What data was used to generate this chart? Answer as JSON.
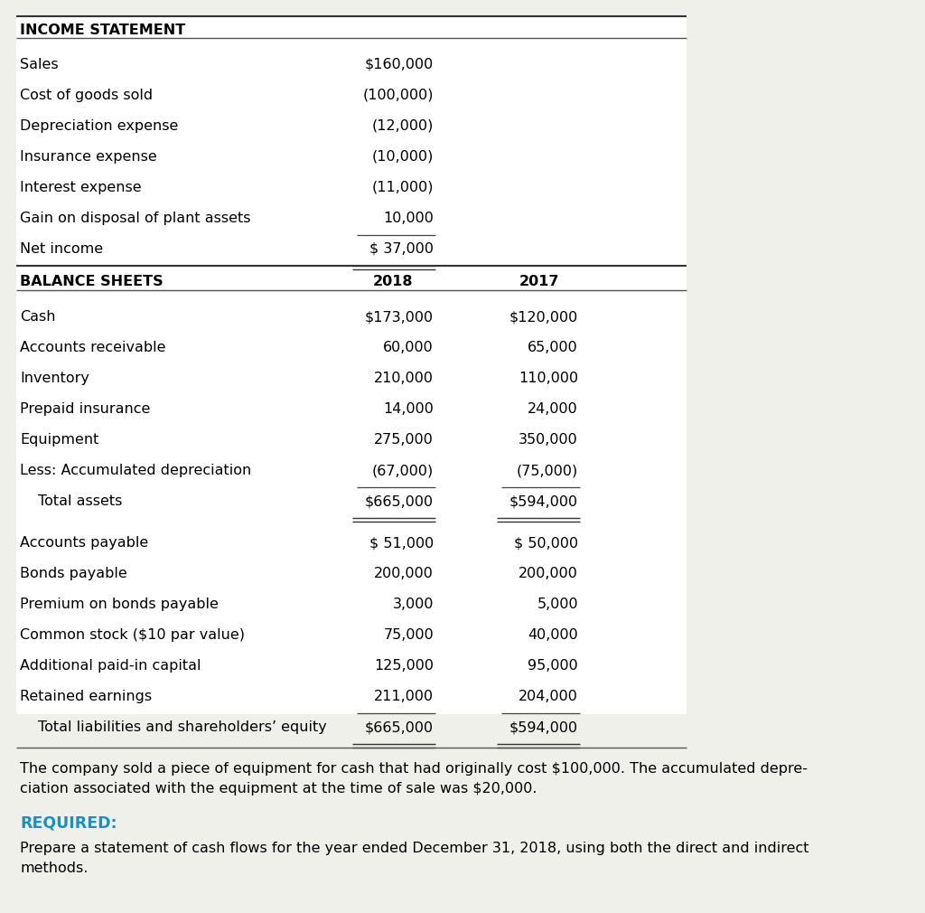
{
  "bg_color": "#f0f0eb",
  "table_bg": "#ffffff",
  "income_statement_header": "INCOME STATEMENT",
  "balance_sheets_header": "BALANCE SHEETS",
  "income_rows": [
    {
      "label": "Sales",
      "col1": "$160,000",
      "col2": ""
    },
    {
      "label": "Cost of goods sold",
      "col1": "(100,000)",
      "col2": ""
    },
    {
      "label": "Depreciation expense",
      "col1": "(12,000)",
      "col2": ""
    },
    {
      "label": "Insurance expense",
      "col1": "(10,000)",
      "col2": ""
    },
    {
      "label": "Interest expense",
      "col1": "(11,000)",
      "col2": ""
    },
    {
      "label": "Gain on disposal of plant assets",
      "col1": "10,000",
      "col2": "",
      "underline_col1": true
    },
    {
      "label": "Net income",
      "col1": "$ 37,000",
      "col2": "",
      "double_underline_col1": true
    }
  ],
  "balance_rows": [
    {
      "label": "Cash",
      "col1": "$173,000",
      "col2": "$120,000"
    },
    {
      "label": "Accounts receivable",
      "col1": "60,000",
      "col2": "65,000"
    },
    {
      "label": "Inventory",
      "col1": "210,000",
      "col2": "110,000"
    },
    {
      "label": "Prepaid insurance",
      "col1": "14,000",
      "col2": "24,000"
    },
    {
      "label": "Equipment",
      "col1": "275,000",
      "col2": "350,000"
    },
    {
      "label": "Less: Accumulated depreciation",
      "col1": "(67,000)",
      "col2": "(75,000)",
      "underline": true
    },
    {
      "label": "Total assets",
      "col1": "$665,000",
      "col2": "$594,000",
      "indent": true,
      "double_underline": true
    },
    {
      "label": "",
      "col1": "",
      "col2": "",
      "spacer": true
    },
    {
      "label": "Accounts payable",
      "col1": "$ 51,000",
      "col2": "$ 50,000"
    },
    {
      "label": "Bonds payable",
      "col1": "200,000",
      "col2": "200,000"
    },
    {
      "label": "Premium on bonds payable",
      "col1": "3,000",
      "col2": "5,000"
    },
    {
      "label": "Common stock ($10 par value)",
      "col1": "75,000",
      "col2": "40,000"
    },
    {
      "label": "Additional paid-in capital",
      "col1": "125,000",
      "col2": "95,000"
    },
    {
      "label": "Retained earnings",
      "col1": "211,000",
      "col2": "204,000",
      "underline": true
    },
    {
      "label": "Total liabilities and shareholders’ equity",
      "col1": "$665,000",
      "col2": "$594,000",
      "indent": true,
      "double_underline": true
    }
  ],
  "note_text1": "The company sold a piece of equipment for cash that had originally cost $100,000. The accumulated depre-",
  "note_text2": "ciation associated with the equipment at the time of sale was $20,000.",
  "required_label": "REQUIRED:",
  "required_color": "#1a8fc1",
  "required_text1": "Prepare a statement of cash flows for the year ended December 31, 2018, using both the direct and indirect",
  "required_text2": "methods."
}
